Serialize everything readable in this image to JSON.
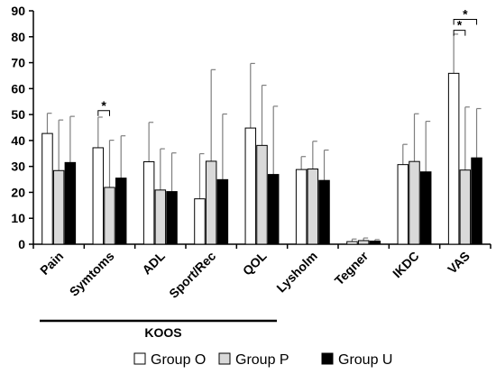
{
  "colors": {
    "group_o": "#ffffff",
    "group_p": "#d9d9d9",
    "group_u": "#000000",
    "axis": "#000000",
    "error_bar": "#7f7f7f"
  },
  "chart_data": {
    "type": "bar",
    "title": "",
    "xlabel": "",
    "ylabel": "",
    "ylim": [
      0,
      90
    ],
    "yticks": [
      0,
      10,
      20,
      30,
      40,
      50,
      60,
      70,
      80,
      90
    ],
    "grid": false,
    "legend_position": "bottom",
    "categories": [
      "Pain",
      "Symtoms",
      "ADL",
      "Sport/Rec",
      "QOL",
      "Lysholm",
      "Tegner",
      "IKDC",
      "VAS"
    ],
    "series": [
      {
        "name": "Group O",
        "values": [
          42.7,
          37.2,
          31.8,
          17.5,
          44.8,
          28.8,
          1.0,
          30.7,
          65.9
        ],
        "errors": [
          7.8,
          11.8,
          15.2,
          17.4,
          24.9,
          5.0,
          1.0,
          7.8,
          15.1
        ]
      },
      {
        "name": "Group P",
        "values": [
          28.4,
          21.9,
          20.9,
          32.0,
          38.1,
          29.0,
          1.4,
          31.9,
          28.6
        ],
        "errors": [
          19.5,
          18.2,
          15.9,
          35.3,
          23.2,
          10.7,
          1.0,
          18.4,
          24.3
        ]
      },
      {
        "name": "Group U",
        "values": [
          31.5,
          25.5,
          20.3,
          24.9,
          26.9,
          24.6,
          1.2,
          27.9,
          33.3
        ],
        "errors": [
          17.8,
          16.3,
          14.9,
          25.3,
          26.3,
          11.7,
          0.6,
          19.5,
          19.0
        ]
      }
    ],
    "annotations": [
      {
        "text": "*",
        "category": "Symtoms",
        "from": "Group O",
        "to": "Group P",
        "level": 51.5
      },
      {
        "text": "*",
        "category": "VAS",
        "from": "Group O",
        "to": "Group P",
        "level": 82.5
      },
      {
        "text": "*",
        "category": "VAS",
        "from": "Group O",
        "to": "Group U",
        "level": 86.7
      }
    ],
    "group_label": {
      "text": "KOOS",
      "categories": [
        "Pain",
        "Symtoms",
        "ADL",
        "Sport/Rec",
        "QOL"
      ]
    }
  }
}
